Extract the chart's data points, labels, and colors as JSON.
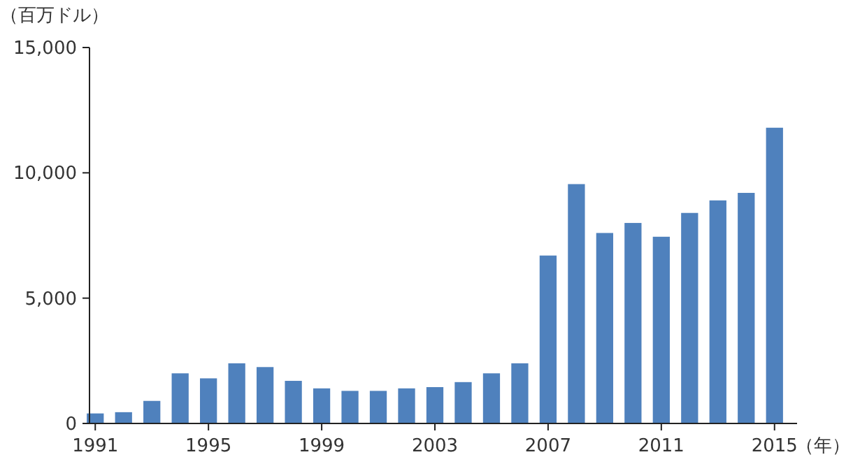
{
  "chart_data": {
    "type": "bar",
    "ylabel": "（百万ドル）",
    "xlabel": "（年）",
    "categories": [
      "1991",
      null,
      null,
      null,
      "1995",
      null,
      null,
      null,
      "1999",
      null,
      null,
      null,
      "2003",
      null,
      null,
      null,
      "2007",
      null,
      null,
      null,
      "2011",
      null,
      null,
      null,
      "2015"
    ],
    "values": [
      400,
      450,
      900,
      2000,
      1800,
      2400,
      2250,
      1700,
      1400,
      1300,
      1300,
      1400,
      1450,
      1650,
      2000,
      2400,
      6700,
      9550,
      7600,
      8000,
      7450,
      8400,
      8900,
      9200,
      11800
    ],
    "color": "#4f81bd",
    "ylim": [
      0,
      15000
    ],
    "yticks": [
      0,
      {
        "value": 5000,
        "label": "5,000"
      },
      {
        "value": 10000,
        "label": "10,000"
      },
      {
        "value": 15000,
        "label": "15,000"
      }
    ],
    "grid": false
  }
}
